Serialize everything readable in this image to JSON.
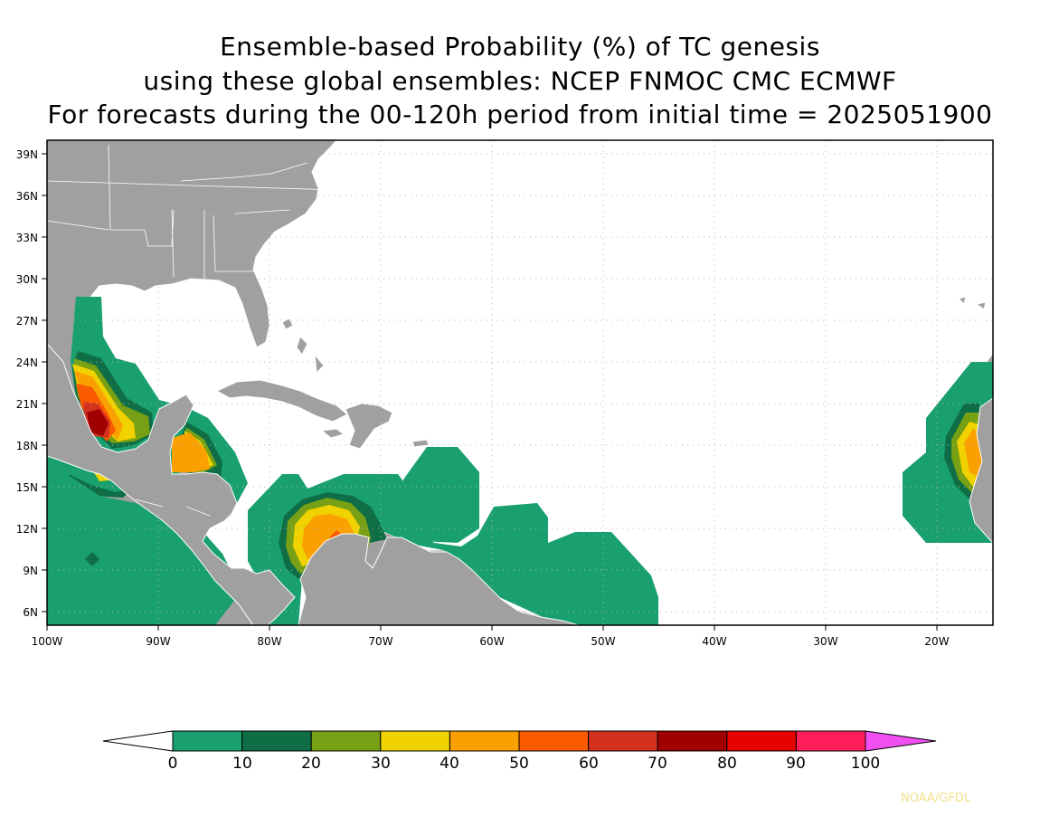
{
  "title": {
    "line1": "Ensemble-based Probability (%) of TC genesis",
    "line2": "using these global ensembles:   NCEP FNMOC CMC ECMWF",
    "line3": "For forecasts during the 00-120h period from initial time = 2025051900"
  },
  "map": {
    "lon_range": [
      -100,
      -15
    ],
    "lat_range": [
      5,
      40
    ],
    "lat_ticks": [
      "39N",
      "36N",
      "33N",
      "30N",
      "27N",
      "24N",
      "21N",
      "18N",
      "15N",
      "12N",
      "9N",
      "6N"
    ],
    "lon_ticks": [
      "100W",
      "90W",
      "80W",
      "70W",
      "60W",
      "50W",
      "40W",
      "30W",
      "20W"
    ],
    "grid": "dotted",
    "land_color": "#a0a0a0",
    "ocean_color": "#ffffff"
  },
  "colorbar": {
    "levels": [
      "0",
      "10",
      "20",
      "30",
      "40",
      "50",
      "60",
      "70",
      "80",
      "90",
      "100"
    ],
    "colors": [
      "#19a06e",
      "#0f6e46",
      "#78a014",
      "#f0d200",
      "#faa000",
      "#fa5a00",
      "#d2321e",
      "#a00000",
      "#e60000",
      "#ff1e5a"
    ],
    "under_color": "#ffffff",
    "over_color": "#f050f0"
  },
  "credit": "NOAA/GFDL"
}
